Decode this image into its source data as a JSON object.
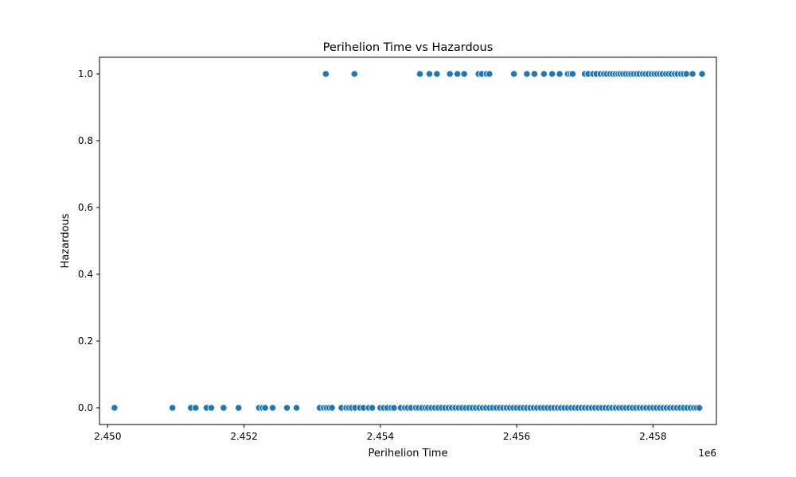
{
  "chart_data": {
    "type": "scatter",
    "title": "Perihelion Time vs Hazardous",
    "xlabel": "Perihelion Time",
    "ylabel": "Hazardous",
    "x_offset_label": "1e6",
    "xlim": [
      2449880,
      2458930
    ],
    "ylim": [
      -0.05,
      1.05
    ],
    "x_ticks": [
      2450000,
      2452000,
      2454000,
      2456000,
      2458000
    ],
    "x_tick_labels": [
      "2.450",
      "2.452",
      "2.454",
      "2.456",
      "2.458"
    ],
    "y_ticks": [
      0.0,
      0.2,
      0.4,
      0.6,
      0.8,
      1.0
    ],
    "y_tick_labels": [
      "0.0",
      "0.2",
      "0.4",
      "0.6",
      "0.8",
      "1.0"
    ],
    "grid": false,
    "legend": "none",
    "point_color": "#1f77b4",
    "series": [
      {
        "y_value": 1.0,
        "x": [
          2453200,
          2453620,
          2454580,
          2454720,
          2454830,
          2455020,
          2455130,
          2455230,
          2455440,
          2455490,
          2455560,
          2455600,
          2455960,
          2456150,
          2456260,
          2456400,
          2456520,
          2456630,
          2456750,
          2456790,
          2456820,
          2457000,
          2457050,
          2457120,
          2457170,
          2457230,
          2457280,
          2457320,
          2457370,
          2457410,
          2457450,
          2457490,
          2457520,
          2457560,
          2457600,
          2457640,
          2457680,
          2457720,
          2457760,
          2457800,
          2457850,
          2457890,
          2457930,
          2457980,
          2458020,
          2458060,
          2458100,
          2458140,
          2458190,
          2458230,
          2458270,
          2458320,
          2458360,
          2458410,
          2458450,
          2458490,
          2458580,
          2458720
        ]
      },
      {
        "y_value": 0.0,
        "x": [
          2450100,
          2450950,
          2451220,
          2451290,
          2451450,
          2451520,
          2451700,
          2451920,
          2452220,
          2452270,
          2452310,
          2452420,
          2452630,
          2452770,
          2453110,
          2453170,
          2453210,
          2453250,
          2453290,
          2453430,
          2453500,
          2453540,
          2453580,
          2453630,
          2453700,
          2453750,
          2453830,
          2453880,
          2454000,
          2454050,
          2454100,
          2454160,
          2454200,
          2454300,
          2454360,
          2454400,
          2454450,
          2454520,
          2454560,
          2454610,
          2454660,
          2454700,
          2454750,
          2454800,
          2454850,
          2454900,
          2454950,
          2455000,
          2455050,
          2455100,
          2455150,
          2455200,
          2455250,
          2455300,
          2455350,
          2455400,
          2455450,
          2455500,
          2455550,
          2455600,
          2455650,
          2455700,
          2455750,
          2455800,
          2455850,
          2455900,
          2455950,
          2456000,
          2456050,
          2456100,
          2456150,
          2456200,
          2456250,
          2456300,
          2456350,
          2456400,
          2456450,
          2456500,
          2456550,
          2456600,
          2456650,
          2456700,
          2456750,
          2456800,
          2456850,
          2456900,
          2456950,
          2457000,
          2457050,
          2457100,
          2457150,
          2457200,
          2457250,
          2457300,
          2457350,
          2457400,
          2457450,
          2457500,
          2457550,
          2457600,
          2457650,
          2457700,
          2457750,
          2457800,
          2457850,
          2457900,
          2457950,
          2458000,
          2458050,
          2458100,
          2458150,
          2458200,
          2458250,
          2458300,
          2458350,
          2458400,
          2458450,
          2458500,
          2458550,
          2458600,
          2458640,
          2458680
        ]
      }
    ]
  }
}
